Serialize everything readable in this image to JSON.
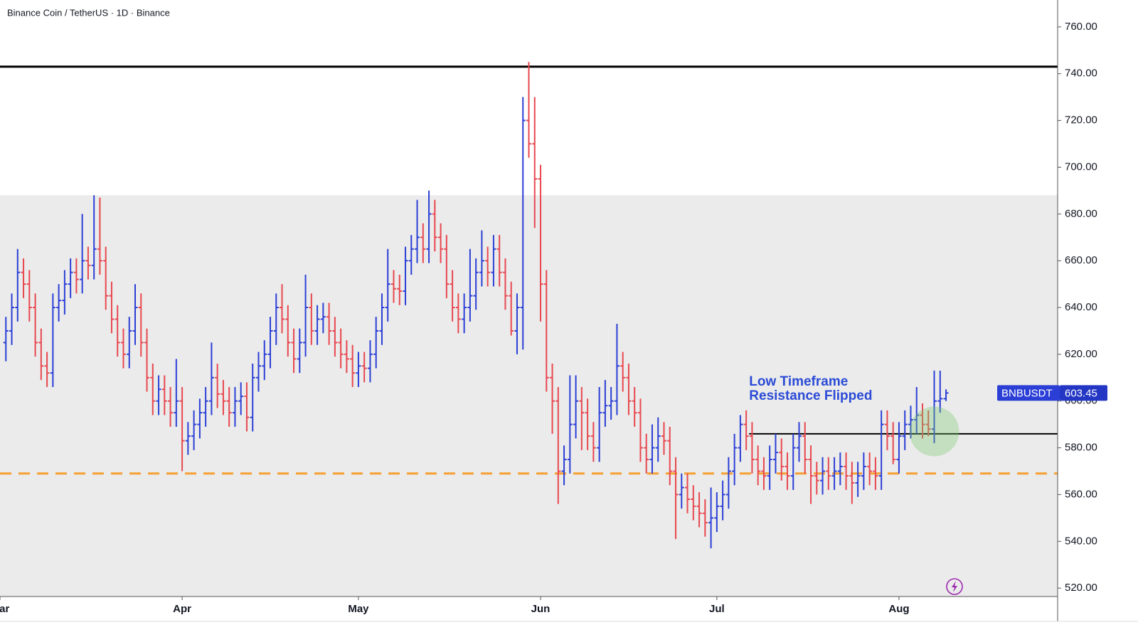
{
  "chart_data": {
    "type": "ohlc",
    "title": "Binance Coin / TetherUS · 1D · Binance",
    "symbol": "BNBUSDT",
    "annotation": [
      "Low Timeframe",
      "Resistance Flipped"
    ],
    "up_color": "#2b3fd6",
    "down_color": "#e8474f",
    "first_day": 1,
    "bars": [
      [
        625,
        636,
        617,
        630
      ],
      [
        630,
        646,
        624,
        640
      ],
      [
        640,
        665,
        634,
        655
      ],
      [
        655,
        661,
        644,
        650
      ],
      [
        650,
        656,
        634,
        640
      ],
      [
        640,
        646,
        619,
        625
      ],
      [
        625,
        631,
        609,
        615
      ],
      [
        615,
        621,
        606,
        612
      ],
      [
        612,
        646,
        606,
        640
      ],
      [
        640,
        650,
        634,
        643
      ],
      [
        643,
        656,
        637,
        650
      ],
      [
        650,
        661,
        644,
        655
      ],
      [
        655,
        661,
        646,
        652
      ],
      [
        652,
        680,
        646,
        660
      ],
      [
        660,
        666,
        652,
        658
      ],
      [
        658,
        688,
        652,
        665
      ],
      [
        665,
        687,
        654,
        660
      ],
      [
        660,
        666,
        639,
        645
      ],
      [
        645,
        651,
        629,
        635
      ],
      [
        635,
        641,
        619,
        625
      ],
      [
        625,
        631,
        614,
        620
      ],
      [
        620,
        636,
        614,
        630
      ],
      [
        630,
        650,
        624,
        640
      ],
      [
        640,
        646,
        619,
        625
      ],
      [
        625,
        631,
        604,
        610
      ],
      [
        610,
        616,
        594,
        600
      ],
      [
        600,
        611,
        594,
        605
      ],
      [
        605,
        611,
        594,
        600
      ],
      [
        600,
        606,
        589,
        595
      ],
      [
        595,
        618,
        589,
        600
      ],
      [
        600,
        606,
        570,
        583
      ],
      [
        583,
        591,
        577,
        585
      ],
      [
        585,
        596,
        579,
        590
      ],
      [
        590,
        601,
        584,
        595
      ],
      [
        595,
        606,
        589,
        600
      ],
      [
        600,
        625,
        594,
        610
      ],
      [
        610,
        616,
        597,
        603
      ],
      [
        603,
        609,
        594,
        600
      ],
      [
        600,
        606,
        589,
        595
      ],
      [
        595,
        606,
        589,
        600
      ],
      [
        600,
        608,
        594,
        602
      ],
      [
        602,
        608,
        587,
        593
      ],
      [
        593,
        616,
        587,
        610
      ],
      [
        610,
        621,
        604,
        615
      ],
      [
        615,
        626,
        609,
        620
      ],
      [
        620,
        636,
        614,
        630
      ],
      [
        630,
        646,
        624,
        640
      ],
      [
        640,
        650,
        629,
        635
      ],
      [
        635,
        641,
        619,
        625
      ],
      [
        625,
        631,
        612,
        618
      ],
      [
        618,
        631,
        612,
        625
      ],
      [
        625,
        654,
        619,
        640
      ],
      [
        640,
        646,
        624,
        630
      ],
      [
        630,
        641,
        624,
        635
      ],
      [
        635,
        642,
        629,
        636
      ],
      [
        636,
        642,
        624,
        630
      ],
      [
        630,
        636,
        619,
        625
      ],
      [
        625,
        631,
        614,
        620
      ],
      [
        620,
        626,
        612,
        618
      ],
      [
        618,
        624,
        606,
        612
      ],
      [
        612,
        621,
        606,
        615
      ],
      [
        615,
        621,
        608,
        614
      ],
      [
        614,
        626,
        608,
        620
      ],
      [
        620,
        636,
        614,
        630
      ],
      [
        630,
        646,
        624,
        640
      ],
      [
        640,
        665,
        634,
        650
      ],
      [
        650,
        656,
        642,
        648
      ],
      [
        648,
        654,
        641,
        647
      ],
      [
        647,
        666,
        641,
        660
      ],
      [
        660,
        671,
        654,
        665
      ],
      [
        665,
        686,
        659,
        670
      ],
      [
        670,
        676,
        659,
        665
      ],
      [
        665,
        690,
        659,
        680
      ],
      [
        680,
        686,
        664,
        670
      ],
      [
        670,
        676,
        659,
        665
      ],
      [
        665,
        671,
        644,
        650
      ],
      [
        650,
        656,
        634,
        640
      ],
      [
        640,
        646,
        629,
        635
      ],
      [
        635,
        646,
        629,
        640
      ],
      [
        640,
        665,
        634,
        645
      ],
      [
        645,
        661,
        639,
        655
      ],
      [
        655,
        673,
        649,
        660
      ],
      [
        660,
        666,
        649,
        655
      ],
      [
        655,
        671,
        649,
        665
      ],
      [
        665,
        671,
        649,
        655
      ],
      [
        655,
        661,
        639,
        645
      ],
      [
        645,
        651,
        628,
        630
      ],
      [
        630,
        646,
        620,
        640
      ],
      [
        640,
        730,
        622,
        720
      ],
      [
        720,
        745,
        704,
        710
      ],
      [
        710,
        730,
        674,
        695
      ],
      [
        695,
        701,
        634,
        650
      ],
      [
        650,
        656,
        604,
        610
      ],
      [
        610,
        616,
        586,
        600
      ],
      [
        600,
        606,
        556,
        570
      ],
      [
        570,
        581,
        564,
        575
      ],
      [
        575,
        611,
        569,
        590
      ],
      [
        590,
        611,
        584,
        600
      ],
      [
        600,
        606,
        579,
        595
      ],
      [
        595,
        601,
        579,
        585
      ],
      [
        585,
        591,
        574,
        580
      ],
      [
        580,
        606,
        574,
        595
      ],
      [
        595,
        609,
        589,
        598
      ],
      [
        598,
        606,
        592,
        600
      ],
      [
        600,
        633,
        594,
        615
      ],
      [
        615,
        621,
        604,
        610
      ],
      [
        610,
        616,
        594,
        600
      ],
      [
        600,
        606,
        589,
        595
      ],
      [
        595,
        601,
        574,
        580
      ],
      [
        580,
        586,
        569,
        575
      ],
      [
        575,
        590,
        569,
        580
      ],
      [
        580,
        593,
        574,
        585
      ],
      [
        585,
        591,
        577,
        583
      ],
      [
        583,
        589,
        564,
        570
      ],
      [
        570,
        576,
        541,
        560
      ],
      [
        560,
        569,
        554,
        563
      ],
      [
        563,
        569,
        552,
        558
      ],
      [
        558,
        564,
        549,
        555
      ],
      [
        555,
        561,
        546,
        552
      ],
      [
        552,
        558,
        542,
        548
      ],
      [
        548,
        563,
        537,
        550
      ],
      [
        550,
        561,
        544,
        555
      ],
      [
        555,
        566,
        549,
        560
      ],
      [
        560,
        576,
        554,
        570
      ],
      [
        570,
        586,
        564,
        580
      ],
      [
        580,
        594,
        574,
        590
      ],
      [
        590,
        596,
        579,
        585
      ],
      [
        585,
        591,
        569,
        575
      ],
      [
        575,
        581,
        564,
        570
      ],
      [
        570,
        576,
        562,
        568
      ],
      [
        568,
        581,
        562,
        575
      ],
      [
        575,
        586,
        569,
        578
      ],
      [
        578,
        584,
        566,
        572
      ],
      [
        572,
        578,
        562,
        568
      ],
      [
        568,
        586,
        562,
        580
      ],
      [
        580,
        591,
        574,
        585
      ],
      [
        585,
        591,
        569,
        575
      ],
      [
        575,
        581,
        556,
        568
      ],
      [
        568,
        574,
        560,
        566
      ],
      [
        566,
        576,
        560,
        570
      ],
      [
        570,
        576,
        562,
        568
      ],
      [
        568,
        576,
        562,
        570
      ],
      [
        570,
        578,
        564,
        572
      ],
      [
        572,
        578,
        562,
        568
      ],
      [
        568,
        574,
        556,
        565
      ],
      [
        565,
        574,
        559,
        568
      ],
      [
        568,
        578,
        562,
        572
      ],
      [
        572,
        578,
        564,
        570
      ],
      [
        570,
        576,
        562,
        568
      ],
      [
        568,
        596,
        562,
        590
      ],
      [
        590,
        596,
        579,
        585
      ],
      [
        585,
        591,
        573,
        575
      ],
      [
        575,
        591,
        569,
        585
      ],
      [
        585,
        596,
        579,
        590
      ],
      [
        590,
        598,
        584,
        592
      ],
      [
        592,
        606,
        586,
        594
      ],
      [
        594,
        599,
        584,
        590
      ],
      [
        590,
        596,
        585,
        588
      ],
      [
        588,
        613,
        582,
        600
      ],
      [
        600,
        613,
        595,
        601
      ],
      [
        601,
        605,
        600,
        603.45
      ]
    ],
    "xlim": [
      0,
      180
    ],
    "xticks": [
      {
        "value": 0,
        "label": "Mar"
      },
      {
        "value": 31,
        "label": "Apr"
      },
      {
        "value": 61,
        "label": "May"
      },
      {
        "value": 92,
        "label": "Jun"
      },
      {
        "value": 122,
        "label": "Jul"
      },
      {
        "value": 153,
        "label": "Aug"
      }
    ],
    "ylim": [
      516.4,
      771.5
    ],
    "yticks": [
      {
        "value": 520,
        "label": "520.00"
      },
      {
        "value": 540,
        "label": "540.00"
      },
      {
        "value": 560,
        "label": "560.00"
      },
      {
        "value": 580,
        "label": "580.00"
      },
      {
        "value": 600,
        "label": "600.00"
      },
      {
        "value": 620,
        "label": "620.00"
      },
      {
        "value": 640,
        "label": "640.00"
      },
      {
        "value": 660,
        "label": "660.00"
      },
      {
        "value": 680,
        "label": "680.00"
      },
      {
        "value": 700,
        "label": "700.00"
      },
      {
        "value": 720,
        "label": "720.00"
      },
      {
        "value": 740,
        "label": "740.00"
      },
      {
        "value": 760,
        "label": "760.00"
      }
    ],
    "zone_top": 688,
    "resistance": 743,
    "flip_level": 586,
    "flip_start": 127.5,
    "support": 569,
    "highlight": {
      "x": 159,
      "y": 587
    }
  }
}
